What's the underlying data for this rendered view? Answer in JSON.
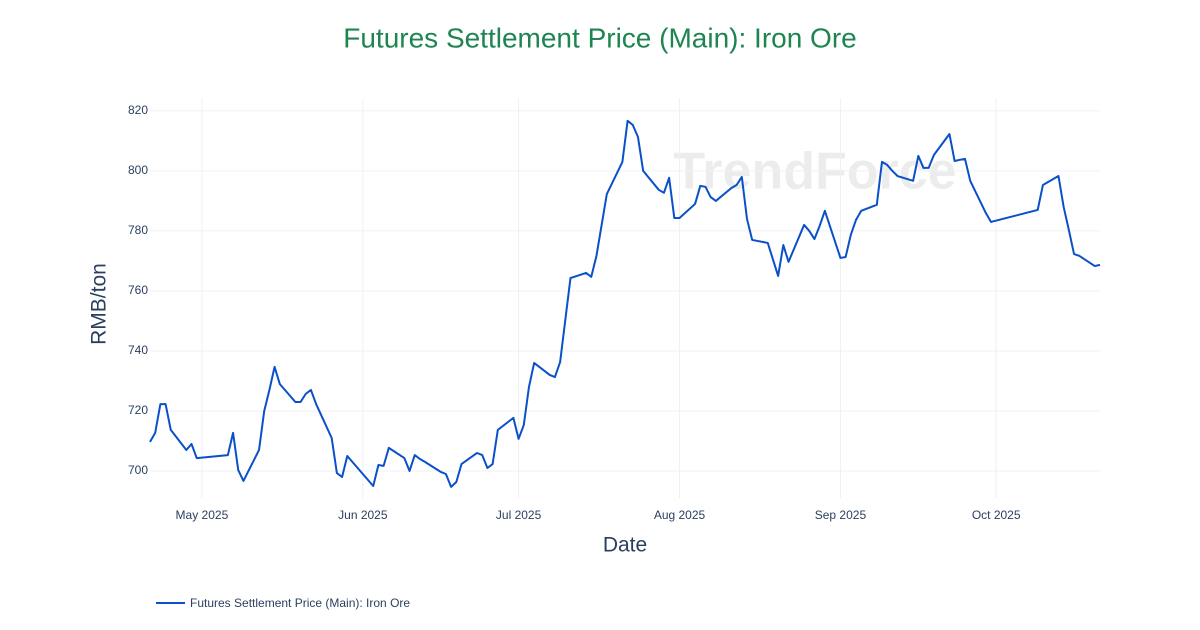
{
  "chart_data": {
    "type": "line",
    "title": "Futures Settlement Price (Main): Iron Ore",
    "watermark": "TrendForce",
    "x_label": "Date",
    "y_label": "RMB/ton",
    "x": [
      "2025-04-21",
      "2025-04-22",
      "2025-04-23",
      "2025-04-24",
      "2025-04-25",
      "2025-04-28",
      "2025-04-29",
      "2025-04-30",
      "2025-05-06",
      "2025-05-07",
      "2025-05-08",
      "2025-05-09",
      "2025-05-12",
      "2025-05-13",
      "2025-05-14",
      "2025-05-15",
      "2025-05-16",
      "2025-05-19",
      "2025-05-20",
      "2025-05-21",
      "2025-05-22",
      "2025-05-23",
      "2025-05-26",
      "2025-05-27",
      "2025-05-28",
      "2025-05-29",
      "2025-05-30",
      "2025-06-03",
      "2025-06-04",
      "2025-06-05",
      "2025-06-06",
      "2025-06-09",
      "2025-06-10",
      "2025-06-11",
      "2025-06-12",
      "2025-06-13",
      "2025-06-16",
      "2025-06-17",
      "2025-06-18",
      "2025-06-19",
      "2025-06-20",
      "2025-06-23",
      "2025-06-24",
      "2025-06-25",
      "2025-06-26",
      "2025-06-27",
      "2025-06-30",
      "2025-07-01",
      "2025-07-02",
      "2025-07-03",
      "2025-07-04",
      "2025-07-07",
      "2025-07-08",
      "2025-07-09",
      "2025-07-10",
      "2025-07-11",
      "2025-07-14",
      "2025-07-15",
      "2025-07-16",
      "2025-07-18",
      "2025-07-21",
      "2025-07-22",
      "2025-07-23",
      "2025-07-24",
      "2025-07-25",
      "2025-07-28",
      "2025-07-29",
      "2025-07-30",
      "2025-07-31",
      "2025-08-01",
      "2025-08-04",
      "2025-08-05",
      "2025-08-06",
      "2025-08-07",
      "2025-08-08",
      "2025-08-11",
      "2025-08-12",
      "2025-08-13",
      "2025-08-14",
      "2025-08-15",
      "2025-08-18",
      "2025-08-20",
      "2025-08-21",
      "2025-08-22",
      "2025-08-25",
      "2025-08-26",
      "2025-08-27",
      "2025-08-28",
      "2025-08-29",
      "2025-09-01",
      "2025-09-02",
      "2025-09-03",
      "2025-09-04",
      "2025-09-05",
      "2025-09-08",
      "2025-09-09",
      "2025-09-10",
      "2025-09-11",
      "2025-09-12",
      "2025-09-15",
      "2025-09-16",
      "2025-09-17",
      "2025-09-18",
      "2025-09-19",
      "2025-09-22",
      "2025-09-23",
      "2025-09-24",
      "2025-09-25",
      "2025-09-26",
      "2025-09-29",
      "2025-09-30",
      "2025-10-09",
      "2025-10-10",
      "2025-10-13",
      "2025-10-14",
      "2025-10-15",
      "2025-10-16",
      "2025-10-17",
      "2025-10-20",
      "2025-10-21"
    ],
    "series": [
      {
        "name": "Futures Settlement Price (Main): Iron Ore",
        "color": "#0a50c8",
        "values": [
          709.7,
          712.7,
          722.3,
          722.3,
          713.7,
          707,
          709,
          704.3,
          705.3,
          712.7,
          700.3,
          696.7,
          707,
          720,
          727,
          734.7,
          729,
          723,
          723,
          725.7,
          727,
          722.3,
          711,
          699.3,
          698,
          705,
          703,
          695,
          702,
          701.7,
          707.7,
          704.3,
          700,
          705.3,
          704,
          703,
          699.7,
          699,
          694.7,
          696.3,
          702.3,
          706,
          705.3,
          701,
          702.3,
          713.7,
          717.7,
          710.7,
          715.3,
          728,
          736,
          732,
          731.3,
          736.3,
          750.3,
          764.3,
          766,
          764.7,
          771.7,
          792.3,
          803,
          816.7,
          815.3,
          811.3,
          800,
          793.7,
          792.7,
          797.7,
          784.3,
          784.3,
          789,
          795,
          794.7,
          791.3,
          790,
          794.3,
          795.3,
          798,
          784,
          777,
          776,
          765,
          775.3,
          769.7,
          782,
          780,
          777.3,
          781.7,
          786.7,
          771,
          771.3,
          778.7,
          783.7,
          786.7,
          788.7,
          803,
          802,
          800,
          798.3,
          796.7,
          805,
          801,
          801,
          805.3,
          812.3,
          803.3,
          803.7,
          804,
          796.7,
          786,
          783,
          787,
          795.3,
          798.3,
          788,
          780.3,
          772.3,
          771.7,
          768.3,
          768.7
        ]
      }
    ],
    "xlim": [
      "2025-04-21",
      "2025-10-21"
    ],
    "xticks": [
      {
        "value": "2025-05-01",
        "label": "May 2025"
      },
      {
        "value": "2025-06-01",
        "label": "Jun 2025"
      },
      {
        "value": "2025-07-01",
        "label": "Jul 2025"
      },
      {
        "value": "2025-08-01",
        "label": "Aug 2025"
      },
      {
        "value": "2025-09-01",
        "label": "Sep 2025"
      },
      {
        "value": "2025-10-01",
        "label": "Oct 2025"
      }
    ],
    "ylim": [
      691,
      824.3
    ],
    "yticks": [
      700,
      720,
      740,
      760,
      780,
      800,
      820
    ],
    "grid": true,
    "legend": "bottom-left"
  }
}
